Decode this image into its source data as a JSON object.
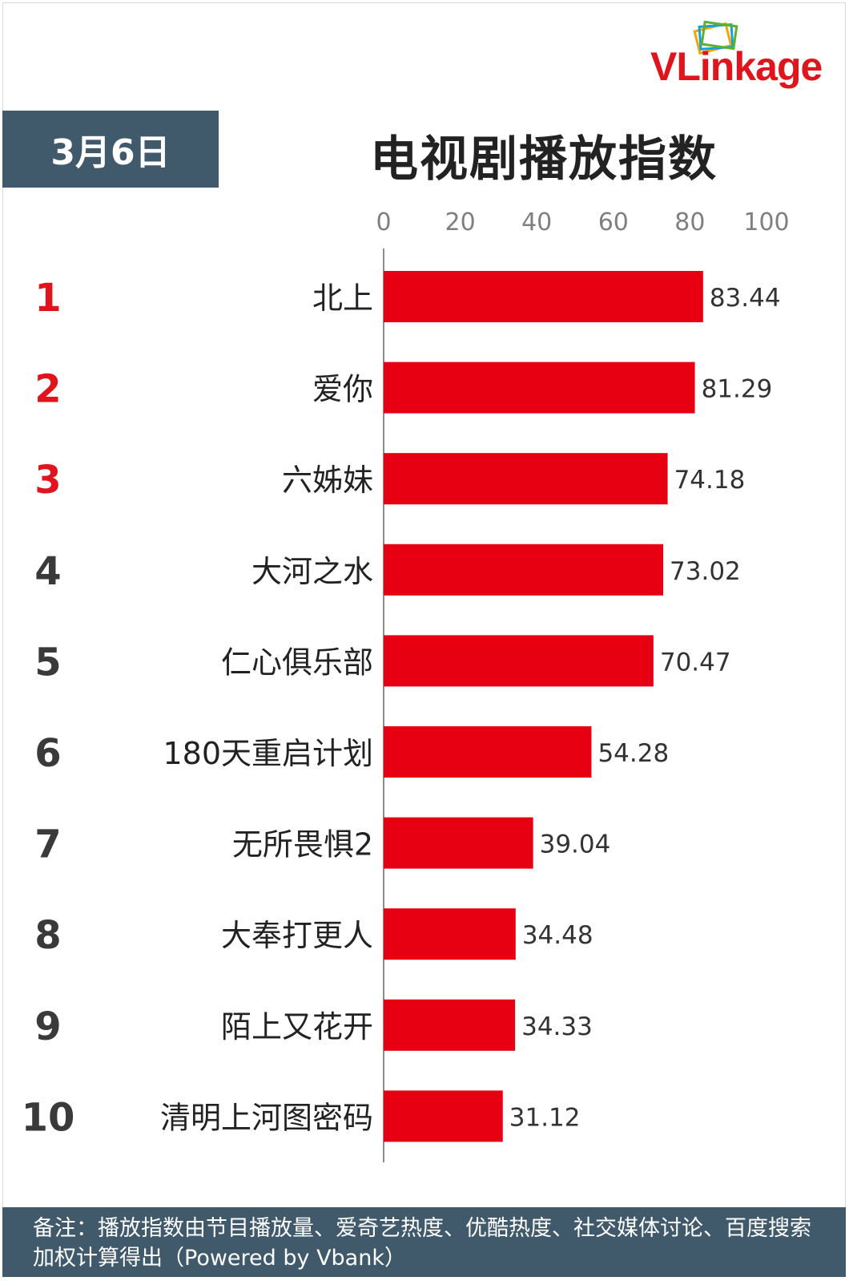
{
  "brand": {
    "logo_text": "VLinkage"
  },
  "header": {
    "date": "3月6日",
    "title": "电视剧播放指数"
  },
  "footer": {
    "note": "备注：播放指数由节目播放量、爱奇艺热度、优酷热度、社交媒体讨论、百度搜索加权计算得出（Powered by Vbank）"
  },
  "colors": {
    "bar": "#e60012",
    "rank_top3": "#e0141c",
    "rank_other": "#3a3a3a",
    "header_bg": "#405a6c"
  },
  "chart_data": {
    "type": "bar",
    "orientation": "horizontal",
    "xlim": [
      0,
      100
    ],
    "xticks": [
      "0",
      "20",
      "40",
      "60",
      "80",
      "100"
    ],
    "xtick_values": [
      0,
      20,
      40,
      60,
      80,
      100
    ],
    "ranks": [
      "1",
      "2",
      "3",
      "4",
      "5",
      "6",
      "7",
      "8",
      "9",
      "10"
    ],
    "categories": [
      "北上",
      "爱你",
      "六姊妹",
      "大河之水",
      "仁心俱乐部",
      "180天重启计划",
      "无所畏惧2",
      "大奉打更人",
      "陌上又花开",
      "清明上河图密码"
    ],
    "values": [
      83.44,
      81.29,
      74.18,
      73.02,
      70.47,
      54.28,
      39.04,
      34.48,
      34.33,
      31.12
    ],
    "value_labels": [
      "83.44",
      "81.29",
      "74.18",
      "73.02",
      "70.47",
      "54.28",
      "39.04",
      "34.48",
      "34.33",
      "31.12"
    ],
    "grid": false,
    "legend": "none"
  }
}
